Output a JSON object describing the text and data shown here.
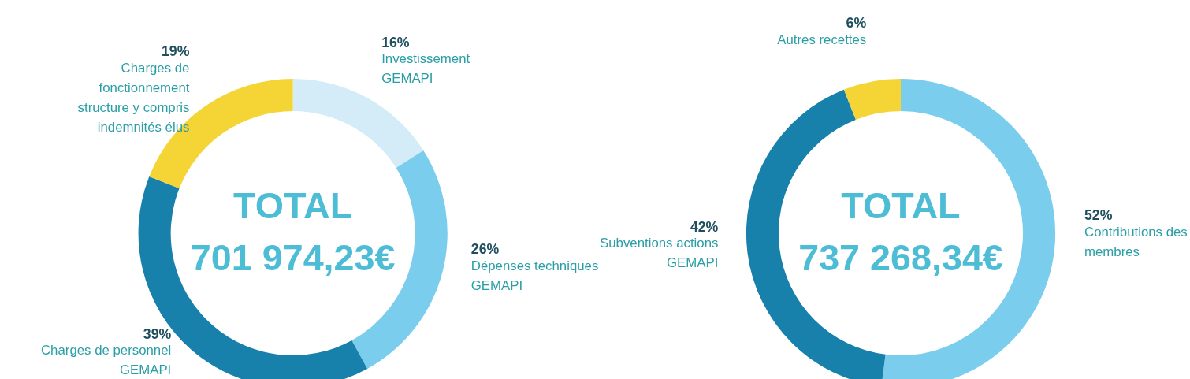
{
  "chart_data": [
    {
      "type": "donut",
      "categories": [
        "Investissement GEMAPI",
        "Dépenses techniques GEMAPI",
        "Charges de personnel GEMAPI",
        "Charges de fonctionnement structure y compris indemnités élus"
      ],
      "values": [
        16,
        26,
        39,
        19
      ],
      "colors": [
        "#d3ecf8",
        "#7bcdee",
        "#1780ab",
        "#f4d535"
      ],
      "value_labels": [
        "16%",
        "26%",
        "39%",
        "19%"
      ],
      "annotations": [
        "TOTAL",
        "701 974,23€"
      ],
      "legend": false
    },
    {
      "type": "donut",
      "categories": [
        "Contributions des membres",
        "Subventions actions GEMAPI",
        "Autres recettes"
      ],
      "values": [
        52,
        42,
        6
      ],
      "colors": [
        "#7bcdee",
        "#1780ab",
        "#f4d535"
      ],
      "value_labels": [
        "52%",
        "42%",
        "6%"
      ],
      "annotations": [
        "TOTAL",
        "737 268,34€"
      ],
      "legend": false
    }
  ]
}
